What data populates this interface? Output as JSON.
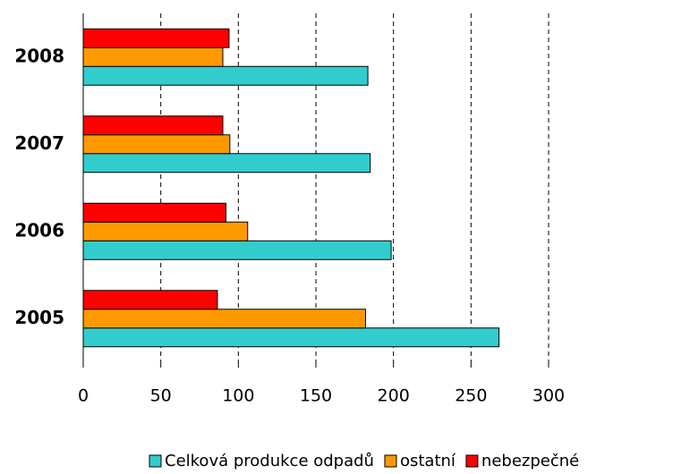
{
  "chart_data": {
    "type": "barh",
    "categories": [
      "2005",
      "2006",
      "2007",
      "2008"
    ],
    "series": [
      {
        "name": "Celková produkce odpadů",
        "color": "#33CCCC",
        "values": [
          268,
          198.5,
          185,
          183.5
        ]
      },
      {
        "name": "ostatní",
        "color": "#FF9900",
        "values": [
          182,
          106,
          94.5,
          90
        ]
      },
      {
        "name": "nebezpečné",
        "color": "#FF0000",
        "values": [
          86.5,
          92,
          90,
          94
        ]
      }
    ],
    "xlim": [
      0,
      300
    ],
    "xticks": [
      0,
      50,
      100,
      150,
      200,
      250,
      300
    ],
    "grid": true
  }
}
